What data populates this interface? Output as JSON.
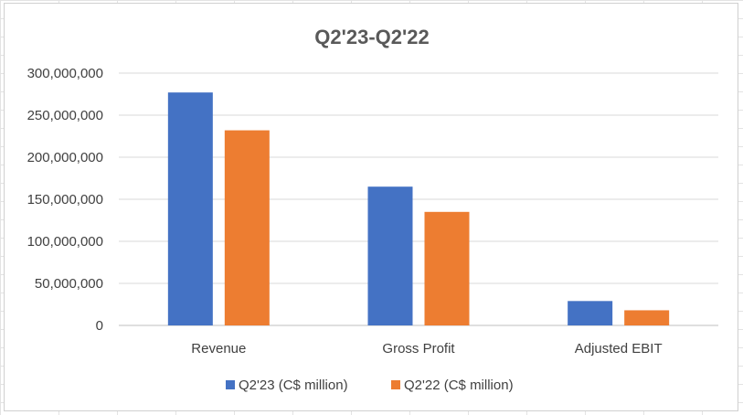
{
  "chart_data": {
    "type": "bar",
    "title": "Q2'23-Q2'22",
    "xlabel": "",
    "ylabel": "",
    "categories": [
      "Revenue",
      "Gross Profit",
      "Adjusted EBIT"
    ],
    "series": [
      {
        "name": "Q2'23 (C$ million)",
        "color": "#4472c4",
        "values": [
          277000000,
          165000000,
          29000000
        ]
      },
      {
        "name": "Q2'22 (C$ million)",
        "color": "#ed7d31",
        "values": [
          232000000,
          135000000,
          18000000
        ]
      }
    ],
    "ylim": [
      0,
      300000000
    ],
    "yticks": [
      0,
      50000000,
      100000000,
      150000000,
      200000000,
      250000000,
      300000000
    ],
    "ytick_labels": [
      "0",
      "50,000,000",
      "100,000,000",
      "150,000,000",
      "200,000,000",
      "250,000,000",
      "300,000,000"
    ],
    "grid": true,
    "legend_position": "bottom"
  }
}
